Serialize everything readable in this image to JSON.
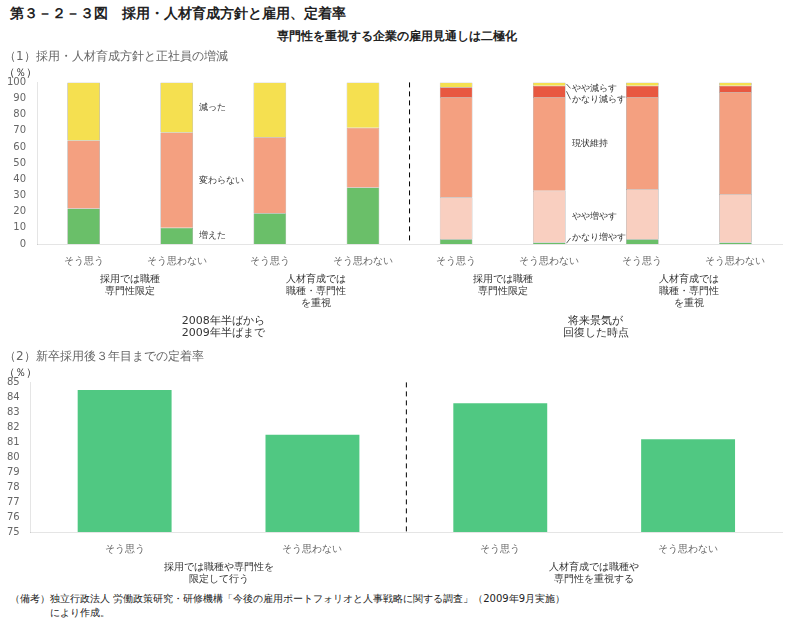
{
  "title": "第３－２－３図　採用・人材育成方針と雇用、定着率",
  "subtitle": "専門性を重視する企業の雇用見通しは二極化",
  "footnote": "（備考）独立行政法人 労働政策研究・研修機構「今後の雇用ポートフォリオと人事戦略に関する調査」（2009年9月実施）\n　　　　により作成。",
  "chart_data": [
    {
      "type": "bar",
      "stacked": true,
      "title": "（1）採用・人材育成方針と正社員の増減",
      "y_label": "（％）",
      "x_groups": [
        {
          "label": "2008年半ばから\n2009年半ばまで",
          "subgroups": [
            {
              "label": "採用では職種\n専門性限定",
              "categories": [
                "そう思う",
                "そう思わない"
              ]
            },
            {
              "label": "人材育成では\n職種・専門性\nを重視",
              "categories": [
                "そう思う",
                "そう思わない"
              ]
            }
          ],
          "series": [
            {
              "name": "増えた",
              "color": "#6abf69",
              "values": [
                22,
                10,
                19,
                35
              ]
            },
            {
              "name": "変わらない",
              "color": "#f4a080",
              "values": [
                42,
                59,
                47,
                37
              ]
            },
            {
              "name": "減った",
              "color": "#f5e050",
              "values": [
                36,
                31,
                34,
                28
              ]
            }
          ]
        },
        {
          "label": "将来景気が\n回復した時点",
          "subgroups": [
            {
              "label": "採用では職種\n専門性限定",
              "categories": [
                "そう思う",
                "そう思わない"
              ]
            },
            {
              "label": "人材育成では\n職種・専門性\nを重視",
              "categories": [
                "そう思う",
                "そう思わない"
              ]
            }
          ],
          "series": [
            {
              "name": "かなり増やす",
              "color": "#6abf69",
              "values": [
                3,
                1,
                3,
                1
              ]
            },
            {
              "name": "やや増やす",
              "color": "#f9cfc0",
              "values": [
                26,
                32,
                31,
                30
              ]
            },
            {
              "name": "現状維持",
              "color": "#f4a080",
              "values": [
                62,
                58,
                57,
                63
              ]
            },
            {
              "name": "かなり減らす",
              "color": "#e85840",
              "values": [
                6,
                7,
                7,
                4
              ]
            },
            {
              "name": "やや減らす",
              "color": "#f5e050",
              "values": [
                3,
                2,
                2,
                2
              ]
            }
          ]
        }
      ],
      "ylim": [
        0,
        100
      ],
      "yticks": [
        0,
        10,
        20,
        30,
        40,
        50,
        60,
        70,
        80,
        90,
        100
      ],
      "grid": false
    },
    {
      "type": "bar",
      "title": "（2）新卒採用後３年目までの定着率",
      "y_label": "（％）",
      "x_groups": [
        {
          "label": "採用では職種や専門性を\n限定して行う",
          "categories": [
            "そう思う",
            "そう思わない"
          ]
        },
        {
          "label": "人材育成では職種や\n専門性を重視する",
          "categories": [
            "そう思う",
            "そう思わない"
          ]
        }
      ],
      "values": [
        84.5,
        81.5,
        83.6,
        81.2
      ],
      "color": "#50c882",
      "ylim": [
        75,
        85
      ],
      "yticks": [
        75,
        76,
        77,
        78,
        79,
        80,
        81,
        82,
        83,
        84,
        85
      ],
      "grid": false
    }
  ]
}
